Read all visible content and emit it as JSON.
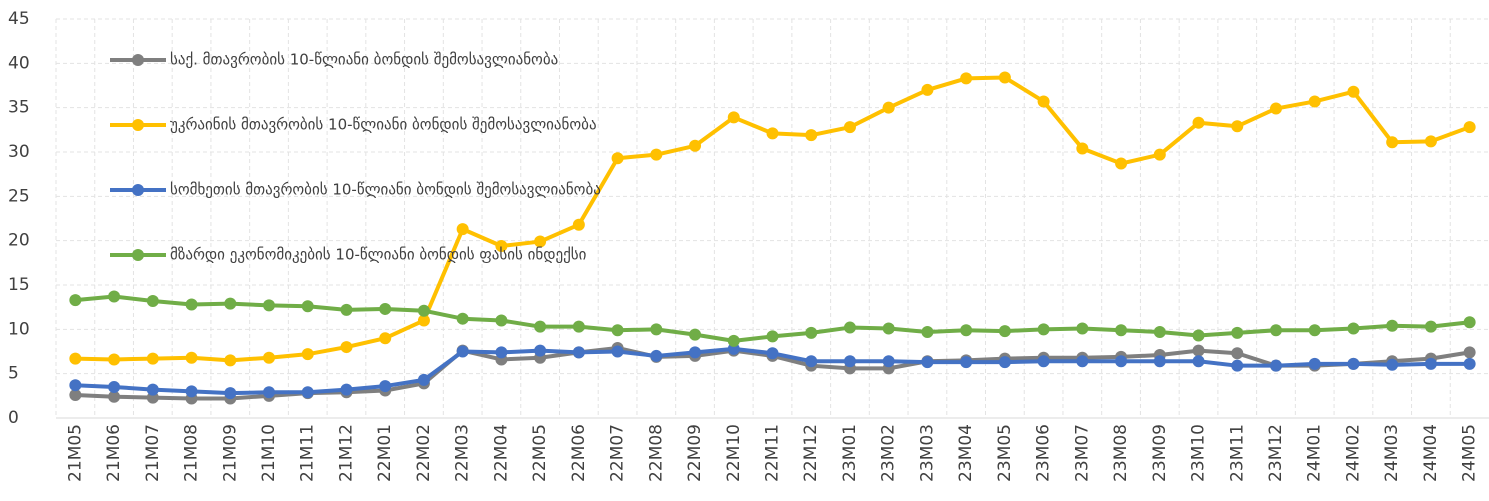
{
  "chart_data": {
    "type": "line",
    "categories": [
      "21M05",
      "21M06",
      "21M07",
      "21M08",
      "21M09",
      "21M10",
      "21M11",
      "21M12",
      "22M01",
      "22M02",
      "22M03",
      "22M04",
      "22M05",
      "22M06",
      "22M07",
      "22M08",
      "22M09",
      "22M10",
      "22M11",
      "22M12",
      "23M01",
      "23M02",
      "23M03",
      "23M04",
      "23M05",
      "23M06",
      "23M07",
      "23M08",
      "23M09",
      "23M10",
      "23M11",
      "23M12",
      "24M01",
      "24M02",
      "24M03",
      "24M04",
      "24M05"
    ],
    "series": [
      {
        "name": "საქ. მთავრობის 10-წლიანი ბონდის შემოსავლიანობა",
        "color": "#7f7f7f",
        "values": [
          2.6,
          2.4,
          2.3,
          2.2,
          2.2,
          2.5,
          2.8,
          2.9,
          3.1,
          3.9,
          7.6,
          6.6,
          6.8,
          7.4,
          7.9,
          6.9,
          7.0,
          7.6,
          7.0,
          5.9,
          5.6,
          5.6,
          6.4,
          6.5,
          6.7,
          6.8,
          6.8,
          6.9,
          7.1,
          7.6,
          7.3,
          5.9,
          5.9,
          6.1,
          6.4,
          6.7,
          7.4
        ]
      },
      {
        "name": "უკრაინის მთავრობის 10-წლიანი ბონდის შემოსავლიანობა",
        "color": "#ffc000",
        "values": [
          6.7,
          6.6,
          6.7,
          6.8,
          6.5,
          6.8,
          7.2,
          8.0,
          9.0,
          11.0,
          21.3,
          19.4,
          19.9,
          21.8,
          29.3,
          29.7,
          30.7,
          33.9,
          32.1,
          31.9,
          32.8,
          35.0,
          37.0,
          38.3,
          38.4,
          35.7,
          30.4,
          28.7,
          29.7,
          33.3,
          32.9,
          34.9,
          35.7,
          36.8,
          31.1,
          31.2,
          32.8
        ]
      },
      {
        "name": "სომხეთის მთავრობის 10-წლიანი ბონდის შემოსავლიანობა",
        "color": "#4472c4",
        "values": [
          3.7,
          3.5,
          3.2,
          3.0,
          2.8,
          2.9,
          2.9,
          3.2,
          3.6,
          4.3,
          7.5,
          7.4,
          7.6,
          7.4,
          7.5,
          7.0,
          7.4,
          7.8,
          7.3,
          6.4,
          6.4,
          6.4,
          6.3,
          6.3,
          6.3,
          6.4,
          6.4,
          6.4,
          6.4,
          6.4,
          5.9,
          5.9,
          6.1,
          6.1,
          6.0,
          6.1,
          6.1
        ]
      },
      {
        "name": "მზარდი ეკონომიკების 10-წლიანი ბონდის ფასის ინდექსი",
        "color": "#70ad47",
        "values": [
          13.3,
          13.7,
          13.2,
          12.8,
          12.9,
          12.7,
          12.6,
          12.2,
          12.3,
          12.1,
          11.2,
          11.0,
          10.3,
          10.3,
          9.9,
          10.0,
          9.4,
          8.7,
          9.2,
          9.6,
          10.2,
          10.1,
          9.7,
          9.9,
          9.8,
          10.0,
          10.1,
          9.9,
          9.7,
          9.3,
          9.6,
          9.9,
          9.9,
          10.1,
          10.4,
          10.3,
          10.8
        ]
      }
    ],
    "ylim": [
      0,
      45
    ],
    "yticks": [
      0,
      5,
      10,
      15,
      20,
      25,
      30,
      35,
      40,
      45
    ],
    "grid": true
  }
}
